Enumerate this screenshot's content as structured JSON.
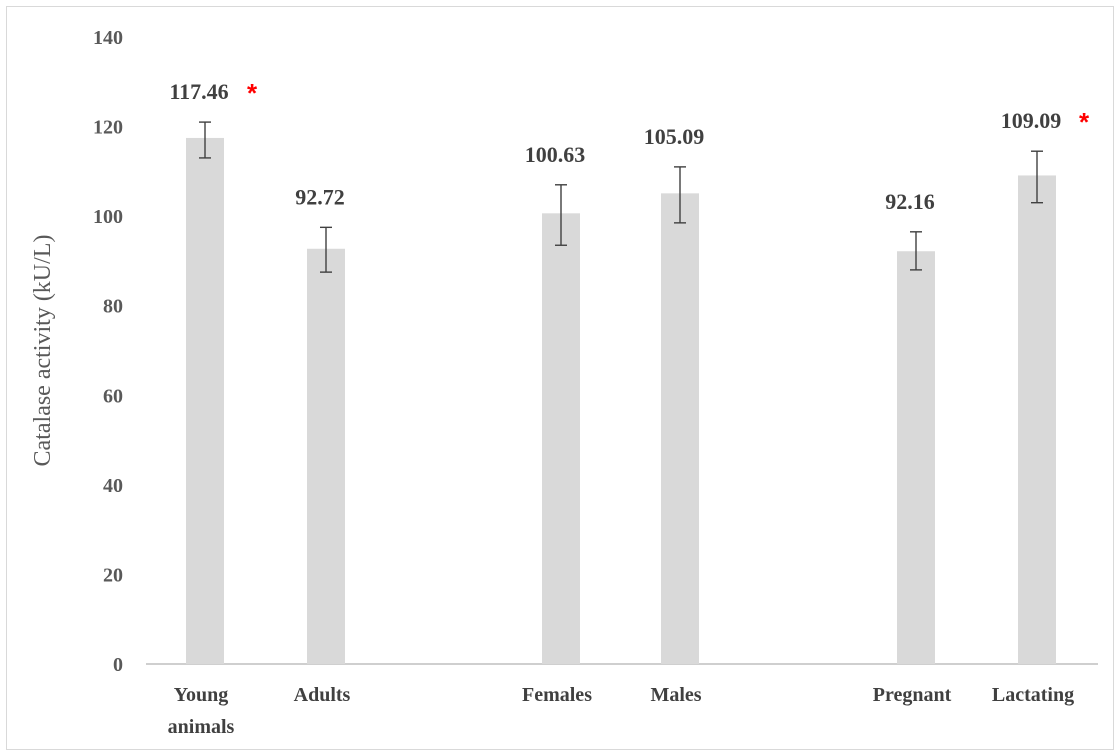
{
  "chart_data": {
    "type": "bar",
    "ylabel": "Catalase activity (kU/L)",
    "ylim": [
      0,
      140
    ],
    "yticks": [
      0,
      20,
      40,
      60,
      80,
      100,
      120,
      140
    ],
    "categories": [
      "Young animals",
      "Adults",
      "Females",
      "Males",
      "Pregnant",
      "Lactating"
    ],
    "category_lines": [
      [
        "Young",
        "animals"
      ],
      [
        "Adults"
      ],
      [
        "Females"
      ],
      [
        "Males"
      ],
      [
        "Pregnant"
      ],
      [
        "Lactating"
      ]
    ],
    "values": [
      117.46,
      92.72,
      100.63,
      105.09,
      92.16,
      109.09
    ],
    "value_labels": [
      "117.46",
      "92.72",
      "100.63",
      "105.09",
      "92.16",
      "109.09"
    ],
    "error_low": [
      113,
      87.5,
      93.5,
      98.5,
      88,
      103
    ],
    "error_high": [
      121,
      97.5,
      107,
      111,
      96.5,
      114.5
    ],
    "significance_marker": "*",
    "significant": [
      true,
      false,
      false,
      false,
      false,
      true
    ],
    "grid": false,
    "legend": "none",
    "colors": {
      "bar": "#d9d9d9",
      "error_bar": "#404040",
      "marker": "#ff0000",
      "axis": "#bfbfbf"
    }
  }
}
